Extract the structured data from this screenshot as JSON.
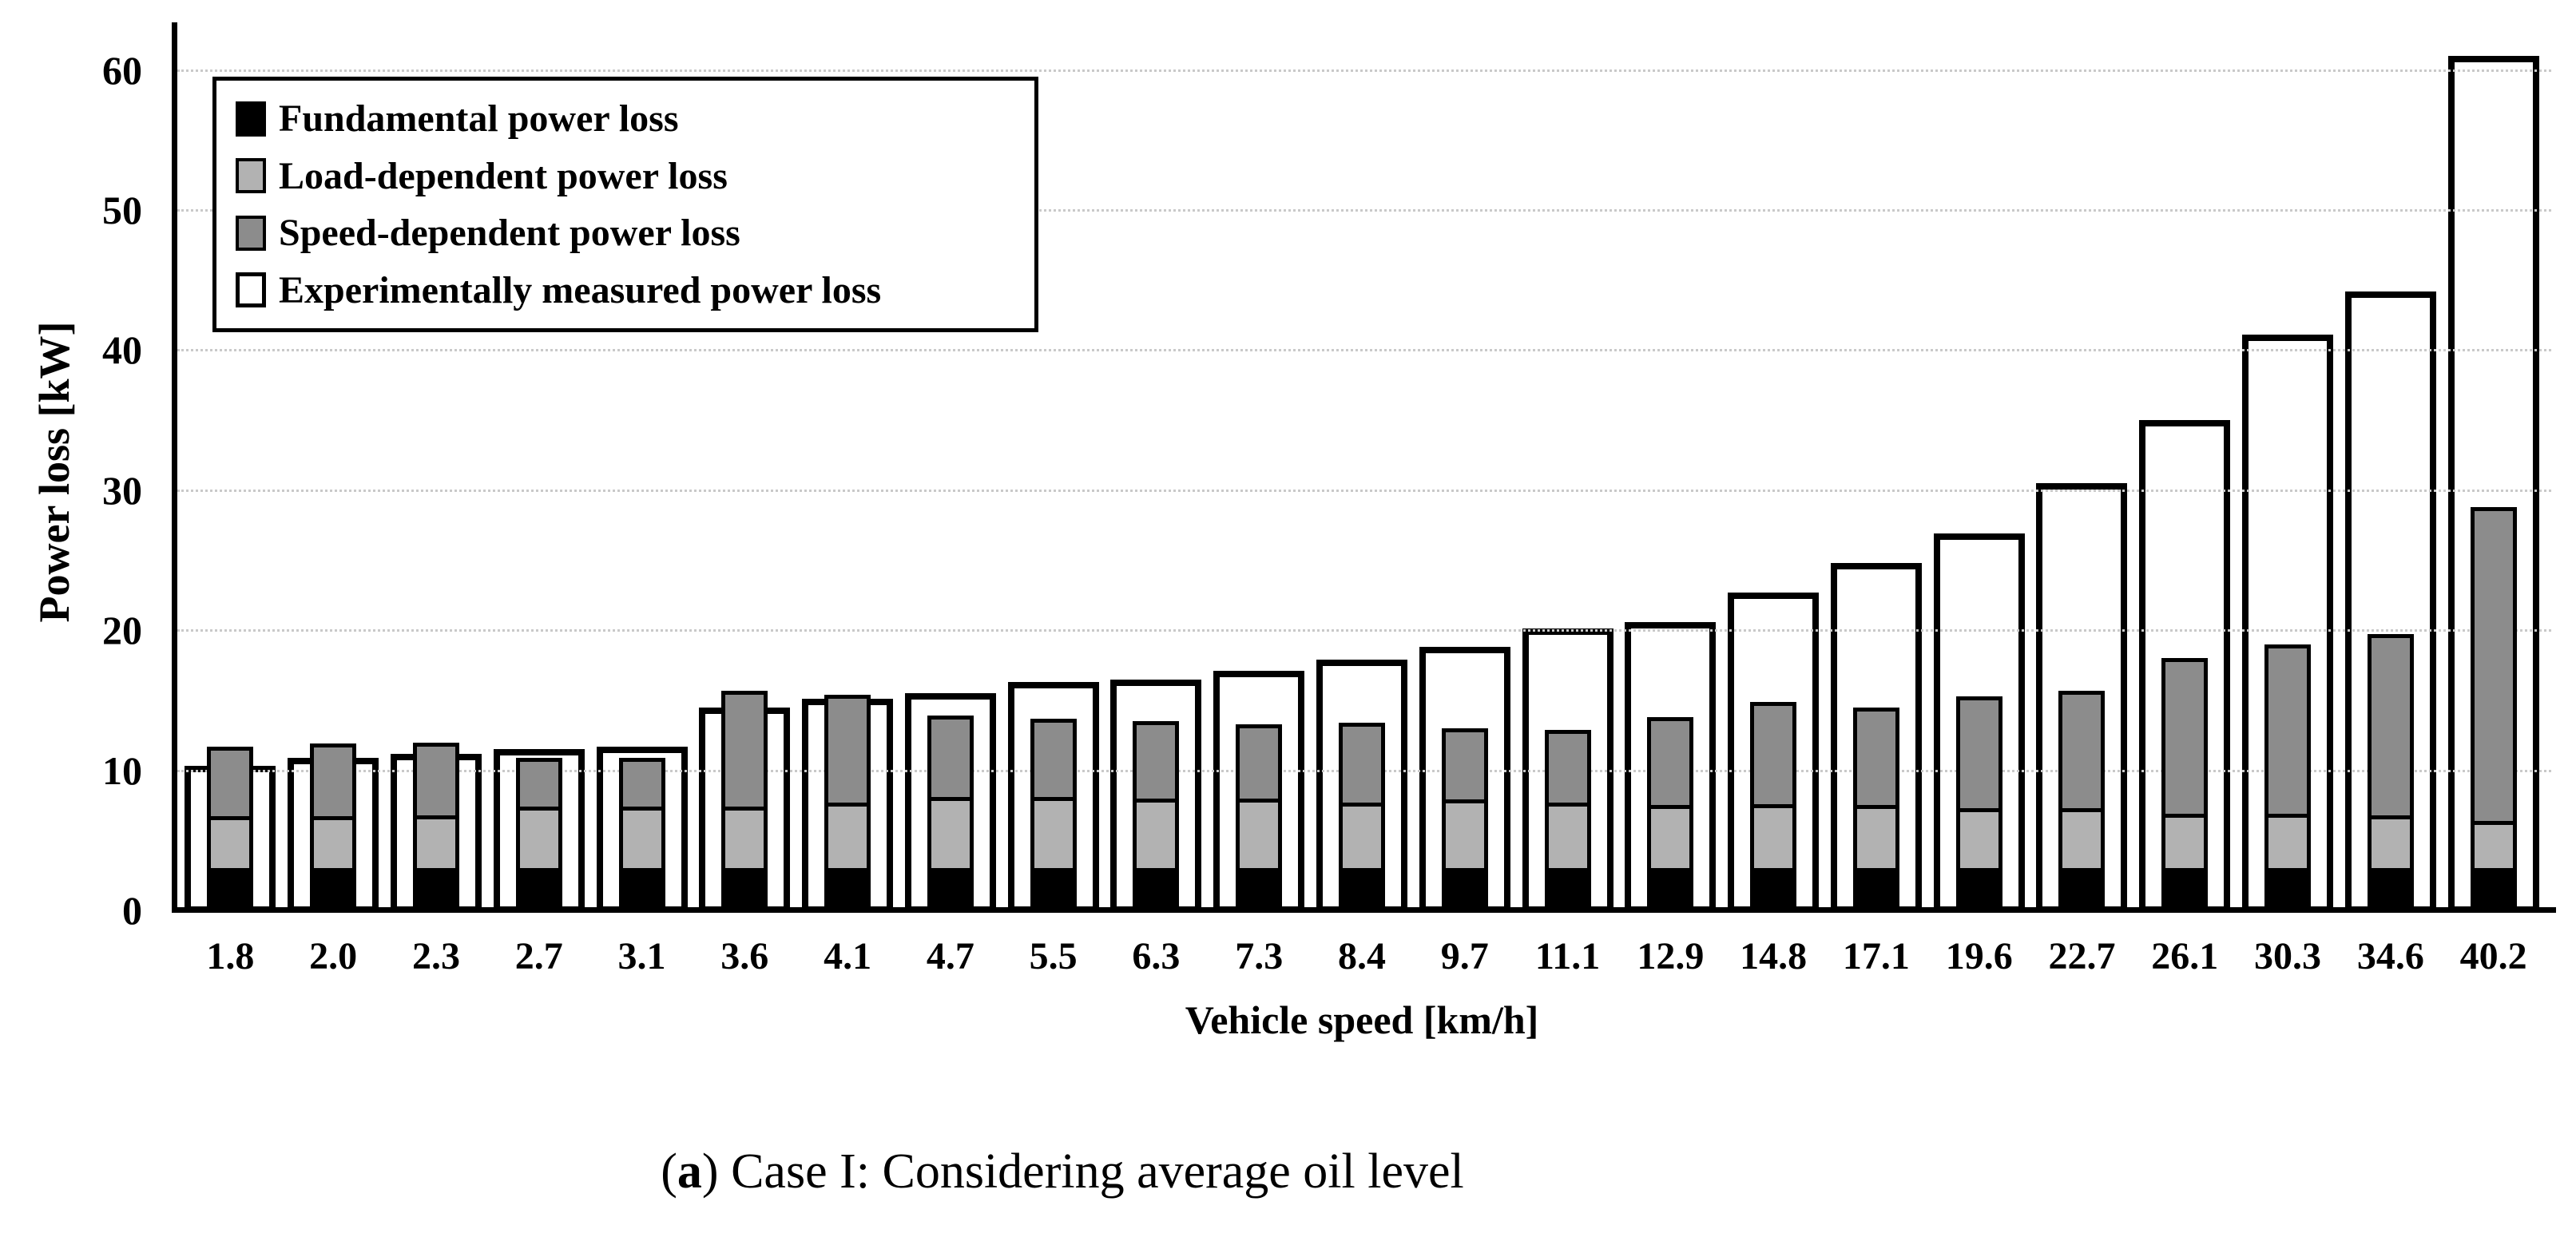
{
  "chart_data": {
    "type": "bar",
    "subtype": "stacked-with-overlay",
    "xlabel": "Vehicle speed [km/h]",
    "ylabel": "Power loss [kW]",
    "ylim": [
      0,
      63.3
    ],
    "yticks": [
      0,
      10,
      20,
      30,
      40,
      50,
      60
    ],
    "grid": true,
    "legend_position": "top-left",
    "categories": [
      "1.8",
      "2.0",
      "2.3",
      "2.7",
      "3.1",
      "3.6",
      "4.1",
      "4.7",
      "5.5",
      "6.3",
      "7.3",
      "8.4",
      "9.7",
      "11.1",
      "12.9",
      "14.8",
      "17.1",
      "19.6",
      "22.7",
      "26.1",
      "30.3",
      "34.6",
      "40.2"
    ],
    "series": [
      {
        "name": "Fundamental power loss",
        "role": "stacked",
        "color": "#000000",
        "values": [
          3.0,
          3.0,
          3.0,
          3.0,
          3.0,
          3.0,
          3.0,
          3.0,
          3.0,
          3.0,
          3.0,
          3.0,
          3.0,
          3.0,
          3.0,
          3.0,
          3.0,
          3.0,
          3.0,
          3.0,
          3.0,
          3.0,
          3.0
        ]
      },
      {
        "name": "Load-dependent power loss",
        "role": "stacked",
        "color": "#b2b2b2",
        "values": [
          3.7,
          3.7,
          3.8,
          4.4,
          4.4,
          4.4,
          4.7,
          5.1,
          5.1,
          5.0,
          5.0,
          4.7,
          4.9,
          4.7,
          4.5,
          4.6,
          4.5,
          4.3,
          4.3,
          3.9,
          3.9,
          3.8,
          3.4
        ]
      },
      {
        "name": "Speed-dependent power loss",
        "role": "stacked",
        "color": "#8c8c8c",
        "values": [
          5.0,
          5.2,
          5.2,
          3.5,
          3.5,
          8.3,
          7.7,
          5.8,
          5.6,
          5.5,
          5.3,
          5.7,
          5.1,
          5.2,
          6.3,
          7.3,
          7.0,
          8.0,
          8.4,
          11.1,
          12.1,
          12.9,
          22.4
        ]
      },
      {
        "name": "Experimentally measured power loss",
        "role": "overlay-outline",
        "color": "#ffffff",
        "values": [
          10.3,
          10.9,
          11.2,
          11.5,
          11.7,
          14.5,
          15.1,
          15.5,
          16.3,
          16.5,
          17.1,
          17.9,
          18.8,
          20.1,
          20.6,
          22.7,
          24.8,
          26.9,
          30.5,
          35.0,
          41.1,
          44.2,
          61.0
        ]
      }
    ]
  },
  "caption": {
    "open": "(",
    "bold": "a",
    "rest": ") Case I: Considering average oil level"
  },
  "colors": {
    "axis": "#000000",
    "gridline": "#c9c9c9",
    "background": "#ffffff"
  }
}
